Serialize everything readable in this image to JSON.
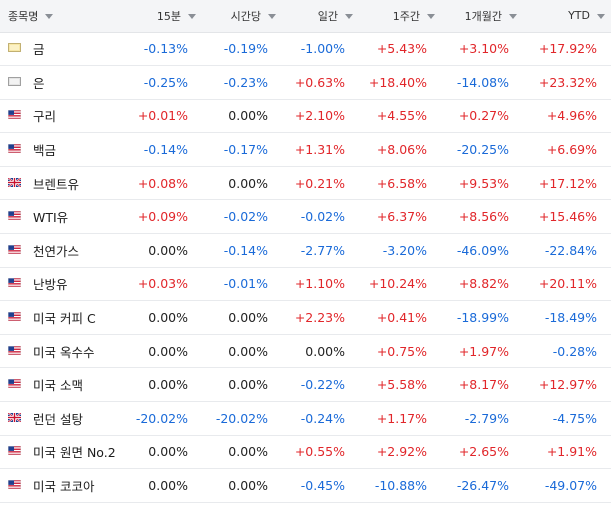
{
  "headers": [
    "종목명",
    "15분",
    "시간당",
    "일간",
    "1주간",
    "1개월간",
    "YTD"
  ],
  "colors": {
    "positive": "#e1262a",
    "negative": "#1a6ad8",
    "flat": "#222222"
  },
  "rows": [
    {
      "name": "금",
      "icon": "gold-bar-icon",
      "values": [
        "-0.13%",
        "-0.19%",
        "-1.00%",
        "+5.43%",
        "+3.10%",
        "+17.92%"
      ]
    },
    {
      "name": "은",
      "icon": "silver-bar-icon",
      "values": [
        "-0.25%",
        "-0.23%",
        "+0.63%",
        "+18.40%",
        "-14.08%",
        "+23.32%"
      ]
    },
    {
      "name": "구리",
      "icon": "us-flag-icon",
      "values": [
        "+0.01%",
        "0.00%",
        "+2.10%",
        "+4.55%",
        "+0.27%",
        "+4.96%"
      ]
    },
    {
      "name": "백금",
      "icon": "us-flag-icon",
      "values": [
        "-0.14%",
        "-0.17%",
        "+1.31%",
        "+8.06%",
        "-20.25%",
        "+6.69%"
      ]
    },
    {
      "name": "브렌트유",
      "icon": "uk-flag-icon",
      "values": [
        "+0.08%",
        "0.00%",
        "+0.21%",
        "+6.58%",
        "+9.53%",
        "+17.12%"
      ]
    },
    {
      "name": "WTI유",
      "icon": "us-flag-icon",
      "values": [
        "+0.09%",
        "-0.02%",
        "-0.02%",
        "+6.37%",
        "+8.56%",
        "+15.46%"
      ]
    },
    {
      "name": "천연가스",
      "icon": "us-flag-icon",
      "values": [
        "0.00%",
        "-0.14%",
        "-2.77%",
        "-3.20%",
        "-46.09%",
        "-22.84%"
      ]
    },
    {
      "name": "난방유",
      "icon": "us-flag-icon",
      "values": [
        "+0.03%",
        "-0.01%",
        "+1.10%",
        "+10.24%",
        "+8.82%",
        "+20.11%"
      ]
    },
    {
      "name": "미국 커피 C",
      "icon": "us-flag-icon",
      "values": [
        "0.00%",
        "0.00%",
        "+2.23%",
        "+0.41%",
        "-18.99%",
        "-18.49%"
      ]
    },
    {
      "name": "미국 옥수수",
      "icon": "us-flag-icon",
      "values": [
        "0.00%",
        "0.00%",
        "0.00%",
        "+0.75%",
        "+1.97%",
        "-0.28%"
      ]
    },
    {
      "name": "미국 소맥",
      "icon": "us-flag-icon",
      "values": [
        "0.00%",
        "0.00%",
        "-0.22%",
        "+5.58%",
        "+8.17%",
        "+12.97%"
      ]
    },
    {
      "name": "런던 설탕",
      "icon": "uk-flag-icon",
      "values": [
        "-20.02%",
        "-20.02%",
        "-0.24%",
        "+1.17%",
        "-2.79%",
        "-4.75%"
      ]
    },
    {
      "name": "미국 원면 No.2",
      "icon": "us-flag-icon",
      "values": [
        "0.00%",
        "0.00%",
        "+0.55%",
        "+2.92%",
        "+2.65%",
        "+1.91%"
      ]
    },
    {
      "name": "미국 코코아",
      "icon": "us-flag-icon",
      "values": [
        "0.00%",
        "0.00%",
        "-0.45%",
        "-10.88%",
        "-26.47%",
        "-49.07%"
      ]
    }
  ]
}
